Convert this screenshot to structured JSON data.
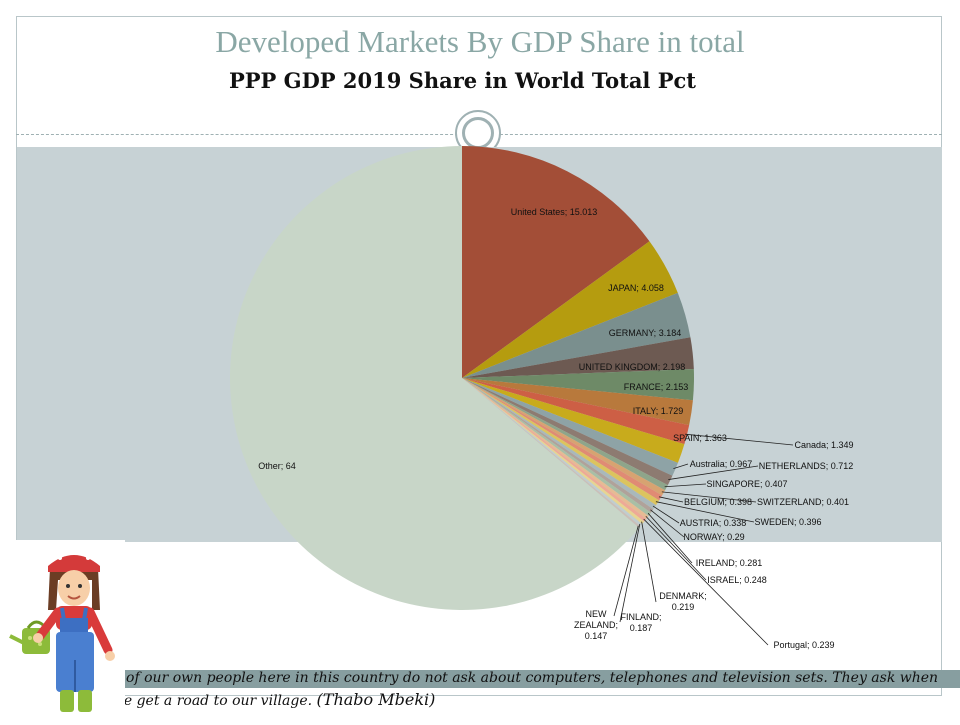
{
  "slide": {
    "title": "Developed Markets By GDP Share in total",
    "quote": "Many of our own people here in this country do not ask about computers, telephones and television sets. They ask when will we get a road to our village.",
    "quote_author": "(Thabo Mbeki)"
  },
  "colors": {
    "plot_background": "#c7d2d5",
    "title_color": "#8aa7a5",
    "quote_band": "#879ea0"
  },
  "chart_data": {
    "type": "pie",
    "title": "PPP GDP 2019 Share in World Total Pct",
    "slices": [
      {
        "label": "United States; 15.013",
        "value": 15.013,
        "color": "#a34e37"
      },
      {
        "label": "JAPAN; 4.058",
        "value": 4.058,
        "color": "#b59c0f"
      },
      {
        "label": "GERMANY; 3.184",
        "value": 3.184,
        "color": "#7a8f8e"
      },
      {
        "label": "UNITED KINGDOM; 2.198",
        "value": 2.198,
        "color": "#6d5a52"
      },
      {
        "label": "FRANCE; 2.153",
        "value": 2.153,
        "color": "#6e8a67"
      },
      {
        "label": "ITALY; 1.729",
        "value": 1.729,
        "color": "#b8793c"
      },
      {
        "label": "Canada; 1.349",
        "value": 1.349,
        "color": "#cd5f45"
      },
      {
        "label": "SPAIN; 1.363",
        "value": 1.363,
        "color": "#c8ab1c"
      },
      {
        "label": "Australia; 0.967",
        "value": 0.967,
        "color": "#8ea3a6"
      },
      {
        "label": "NETHERLANDS; 0.712",
        "value": 0.712,
        "color": "#8d7b71"
      },
      {
        "label": "SINGAPORE; 0.407",
        "value": 0.407,
        "color": "#8ea58a"
      },
      {
        "label": "SWITZERLAND; 0.401",
        "value": 0.401,
        "color": "#d7a371"
      },
      {
        "label": "BELGIUM; 0.398",
        "value": 0.398,
        "color": "#e08b74"
      },
      {
        "label": "SWEDEN; 0.396",
        "value": 0.396,
        "color": "#dcc45e"
      },
      {
        "label": "AUSTRIA; 0.338",
        "value": 0.338,
        "color": "#a9b8bb"
      },
      {
        "label": "NORWAY; 0.29",
        "value": 0.29,
        "color": "#b0a29a"
      },
      {
        "label": "IRELAND; 0.281",
        "value": 0.281,
        "color": "#a8bfa5"
      },
      {
        "label": "ISRAEL; 0.248",
        "value": 0.248,
        "color": "#e6bb93"
      },
      {
        "label": "Portugal; 0.239",
        "value": 0.239,
        "color": "#eea996"
      },
      {
        "label": "DENMARK; 0.219",
        "value": 0.219,
        "color": "#e7d591"
      },
      {
        "label": "FINLAND; 0.187",
        "value": 0.187,
        "color": "#c1cdcf"
      },
      {
        "label": "NEW ZEALAND; 0.147",
        "value": 0.147,
        "color": "#cabfb8"
      },
      {
        "label": "Other; 64",
        "value": 64,
        "color": "#c8d6c8"
      }
    ]
  }
}
